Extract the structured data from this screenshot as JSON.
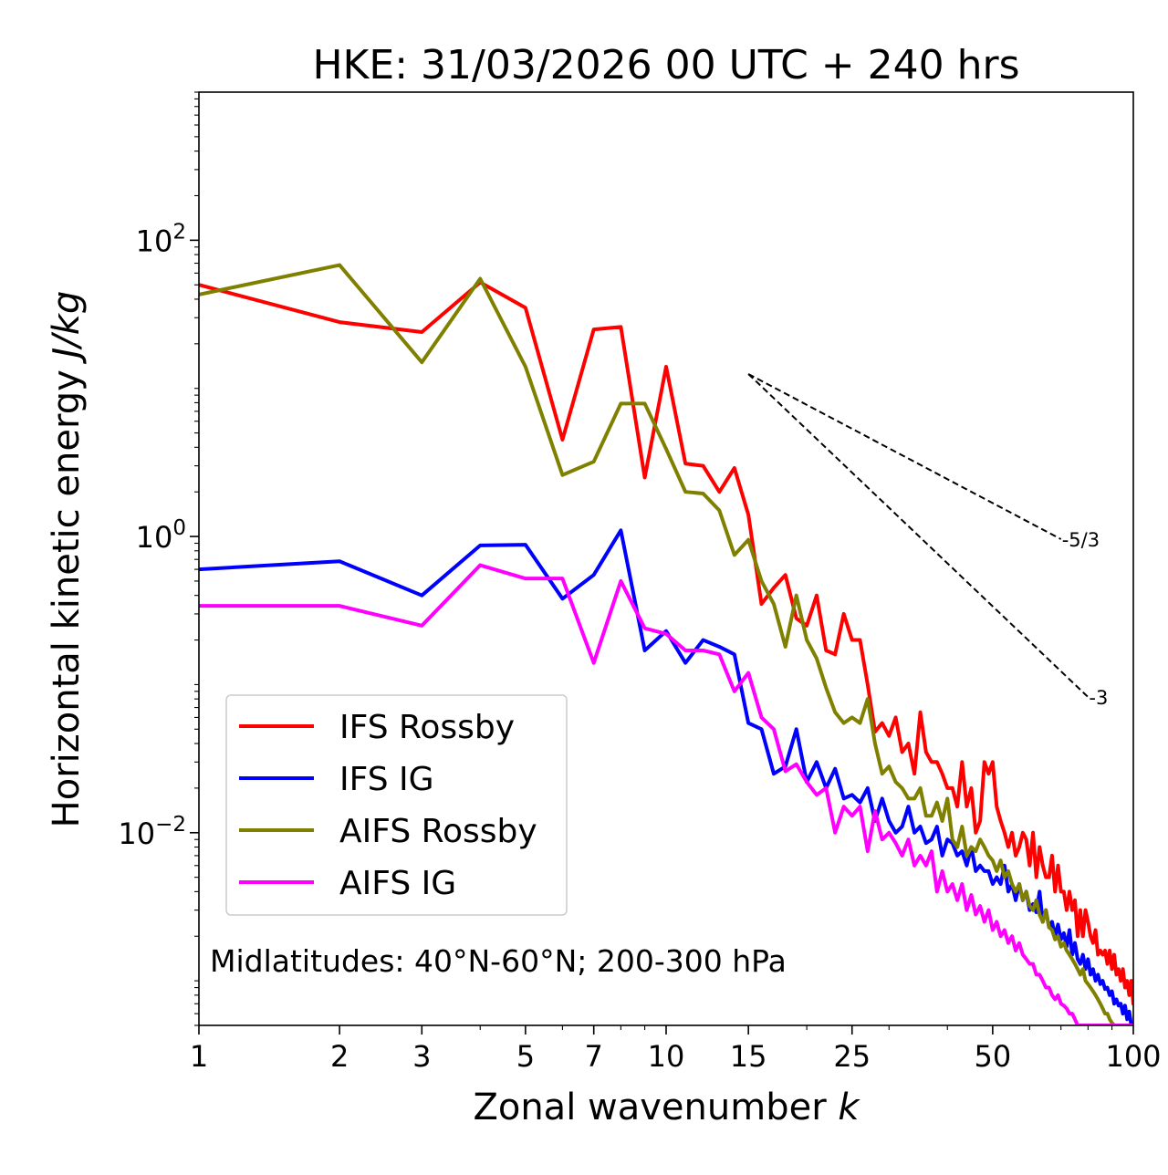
{
  "chart_data": {
    "type": "line",
    "title": "HKE: 31/03/2026 00 UTC + 240 hrs",
    "xlabel": "Zonal wavenumber",
    "xlabel_var": "k",
    "ylabel": "Horizontal kinetic energy",
    "ylabel_unit": "J/kg",
    "xscale": "log",
    "yscale": "log",
    "xlim": [
      1,
      100
    ],
    "ylim": [
      0.0005,
      1000
    ],
    "x_ticks": [
      1,
      2,
      3,
      5,
      7,
      10,
      15,
      25,
      50,
      100
    ],
    "y_ticks": [
      {
        "value": 100,
        "base": "10",
        "exp": "2"
      },
      {
        "value": 1,
        "base": "10",
        "exp": "0"
      },
      {
        "value": 0.01,
        "base": "10",
        "exp": "−2"
      }
    ],
    "annotation": "Midlatitudes: 40°N-60°N; 200-300 hPa",
    "legend_position": "lower-left",
    "reference_lines": [
      {
        "label": "-5/3",
        "slope": -1.6667,
        "k0": 15,
        "e0": 12.5,
        "k1": 70
      },
      {
        "label": "-3",
        "slope": -3,
        "k0": 15,
        "e0": 12.5,
        "k1": 80
      }
    ],
    "series": [
      {
        "name": "IFS Rossby",
        "color": "#ff0000",
        "x": [
          1,
          2,
          3,
          4,
          5,
          6,
          7,
          8,
          9,
          10,
          11,
          12,
          13,
          14,
          15,
          16,
          17,
          18,
          19,
          20,
          21,
          22,
          23,
          24,
          25,
          26,
          27,
          28,
          29,
          30,
          31,
          32,
          33,
          34,
          35,
          36,
          37,
          38,
          39,
          40,
          41,
          42,
          43,
          44,
          45,
          46,
          47,
          48,
          49,
          50,
          51,
          52,
          53,
          54,
          55,
          56,
          57,
          58,
          59,
          60,
          61,
          62,
          63,
          64,
          65,
          66,
          67,
          68,
          69,
          70,
          71,
          72,
          73,
          74,
          75,
          76,
          77,
          78,
          79,
          80,
          81,
          82,
          83,
          84,
          85,
          86,
          87,
          88,
          89,
          90,
          91,
          92,
          93,
          94,
          95,
          96,
          97,
          98,
          99,
          100
        ],
        "y": [
          50,
          28,
          24,
          52,
          35,
          4.5,
          25,
          26,
          2.5,
          14,
          3.1,
          3.0,
          2.0,
          2.9,
          1.4,
          0.35,
          0.45,
          0.55,
          0.28,
          0.25,
          0.4,
          0.17,
          0.16,
          0.3,
          0.2,
          0.2,
          0.1,
          0.048,
          0.055,
          0.045,
          0.06,
          0.035,
          0.04,
          0.025,
          0.065,
          0.035,
          0.03,
          0.03,
          0.025,
          0.02,
          0.02,
          0.015,
          0.03,
          0.015,
          0.02,
          0.01,
          0.012,
          0.03,
          0.025,
          0.03,
          0.015,
          0.012,
          0.01,
          0.008,
          0.01,
          0.007,
          0.008,
          0.01,
          0.009,
          0.006,
          0.01,
          0.005,
          0.008,
          0.006,
          0.005,
          0.005,
          0.007,
          0.004,
          0.006,
          0.004,
          0.004,
          0.003,
          0.004,
          0.003,
          0.0035,
          0.002,
          0.003,
          0.002,
          0.003,
          0.0025,
          0.002,
          0.0018,
          0.0022,
          0.0015,
          0.0016,
          0.0015,
          0.0016,
          0.0013,
          0.0016,
          0.0012,
          0.0015,
          0.0011,
          0.0012,
          0.001,
          0.0012,
          0.0009,
          0.001,
          0.0008,
          0.001,
          0.0007
        ]
      },
      {
        "name": "IFS IG",
        "color": "#0000ff",
        "x": [
          1,
          2,
          3,
          4,
          5,
          6,
          7,
          8,
          9,
          10,
          11,
          12,
          13,
          14,
          15,
          16,
          17,
          18,
          19,
          20,
          21,
          22,
          23,
          24,
          25,
          26,
          27,
          28,
          29,
          30,
          31,
          32,
          33,
          34,
          35,
          36,
          37,
          38,
          39,
          40,
          41,
          42,
          43,
          44,
          45,
          46,
          47,
          48,
          49,
          50,
          51,
          52,
          53,
          54,
          55,
          56,
          57,
          58,
          59,
          60,
          61,
          62,
          63,
          64,
          65,
          66,
          67,
          68,
          69,
          70,
          71,
          72,
          73,
          74,
          75,
          76,
          77,
          78,
          79,
          80,
          81,
          82,
          83,
          84,
          85,
          86,
          87,
          88,
          89,
          90,
          91,
          92,
          93,
          94,
          95,
          96,
          97,
          98,
          99,
          100
        ],
        "y": [
          0.6,
          0.68,
          0.4,
          0.87,
          0.88,
          0.38,
          0.55,
          1.1,
          0.17,
          0.23,
          0.14,
          0.2,
          0.18,
          0.16,
          0.055,
          0.05,
          0.025,
          0.028,
          0.05,
          0.022,
          0.03,
          0.02,
          0.027,
          0.017,
          0.018,
          0.016,
          0.02,
          0.012,
          0.017,
          0.012,
          0.01,
          0.011,
          0.015,
          0.01,
          0.011,
          0.0085,
          0.009,
          0.011,
          0.007,
          0.009,
          0.0085,
          0.007,
          0.0075,
          0.006,
          0.008,
          0.0055,
          0.006,
          0.0055,
          0.0055,
          0.0045,
          0.005,
          0.0045,
          0.006,
          0.004,
          0.0045,
          0.0035,
          0.0045,
          0.0035,
          0.004,
          0.003,
          0.0033,
          0.0029,
          0.004,
          0.0025,
          0.003,
          0.0023,
          0.0025,
          0.002,
          0.0024,
          0.0019,
          0.0021,
          0.0017,
          0.0022,
          0.0015,
          0.0018,
          0.0014,
          0.0013,
          0.0015,
          0.0012,
          0.0014,
          0.0011,
          0.0012,
          0.001,
          0.0011,
          0.00095,
          0.001,
          0.00088,
          0.0009,
          0.0008,
          0.00085,
          0.0007,
          0.00075,
          0.00068,
          0.0007,
          0.0006,
          0.00068,
          0.00055,
          0.00062,
          0.0005,
          0.0005
        ]
      },
      {
        "name": "AIFS Rossby",
        "color": "#808000",
        "x": [
          1,
          2,
          3,
          4,
          5,
          6,
          7,
          8,
          9,
          10,
          11,
          12,
          13,
          14,
          15,
          16,
          17,
          18,
          19,
          20,
          21,
          22,
          23,
          24,
          25,
          26,
          27,
          28,
          29,
          30,
          31,
          32,
          33,
          34,
          35,
          36,
          37,
          38,
          39,
          40,
          41,
          42,
          43,
          44,
          45,
          46,
          47,
          48,
          49,
          50,
          51,
          52,
          53,
          54,
          55,
          56,
          57,
          58,
          59,
          60,
          61,
          62,
          63,
          64,
          65,
          66,
          67,
          68,
          69,
          70,
          71,
          72,
          73,
          74,
          75,
          76,
          77,
          78,
          79,
          80,
          81,
          82,
          83,
          84,
          85,
          86,
          87,
          88,
          89,
          90,
          91,
          92,
          93,
          94,
          95,
          96,
          97,
          98,
          99,
          100
        ],
        "y": [
          43,
          68,
          15,
          55,
          14,
          2.6,
          3.2,
          7.9,
          7.9,
          3.9,
          2.0,
          1.95,
          1.5,
          0.75,
          0.95,
          0.5,
          0.35,
          0.18,
          0.4,
          0.2,
          0.15,
          0.095,
          0.065,
          0.055,
          0.06,
          0.055,
          0.08,
          0.04,
          0.025,
          0.028,
          0.022,
          0.02,
          0.017,
          0.017,
          0.02,
          0.013,
          0.013,
          0.016,
          0.012,
          0.017,
          0.009,
          0.008,
          0.011,
          0.007,
          0.008,
          0.0075,
          0.009,
          0.008,
          0.007,
          0.0065,
          0.0055,
          0.0065,
          0.005,
          0.0055,
          0.0045,
          0.004,
          0.0045,
          0.0035,
          0.004,
          0.0032,
          0.003,
          0.0035,
          0.0028,
          0.0025,
          0.003,
          0.0023,
          0.0022,
          0.0019,
          0.002,
          0.0017,
          0.0018,
          0.0016,
          0.0015,
          0.0014,
          0.0013,
          0.0012,
          0.0011,
          0.0012,
          0.001,
          0.00095,
          0.0009,
          0.00085,
          0.0008,
          0.00075,
          0.0007,
          0.00065,
          0.0006,
          0.0006,
          0.00055,
          0.00052,
          0.0005,
          0.0005,
          0.0005,
          0.0005,
          0.0005,
          0.0005,
          0.0005,
          0.0005,
          0.0005,
          0.0005
        ]
      },
      {
        "name": "AIFS IG",
        "color": "#ff00ff",
        "x": [
          1,
          2,
          3,
          4,
          5,
          6,
          7,
          8,
          9,
          10,
          11,
          12,
          13,
          14,
          15,
          16,
          17,
          18,
          19,
          20,
          21,
          22,
          23,
          24,
          25,
          26,
          27,
          28,
          29,
          30,
          31,
          32,
          33,
          34,
          35,
          36,
          37,
          38,
          39,
          40,
          41,
          42,
          43,
          44,
          45,
          46,
          47,
          48,
          49,
          50,
          51,
          52,
          53,
          54,
          55,
          56,
          57,
          58,
          59,
          60,
          61,
          62,
          63,
          64,
          65,
          66,
          67,
          68,
          69,
          70,
          71,
          72,
          73,
          74,
          75,
          76,
          77,
          78,
          79,
          80,
          81,
          82,
          83,
          84,
          85,
          86,
          87,
          88,
          89,
          90,
          91,
          92,
          93,
          94,
          95,
          96,
          97,
          98,
          99,
          100
        ],
        "y": [
          0.34,
          0.34,
          0.25,
          0.64,
          0.52,
          0.52,
          0.14,
          0.5,
          0.24,
          0.22,
          0.17,
          0.17,
          0.16,
          0.09,
          0.12,
          0.06,
          0.05,
          0.026,
          0.029,
          0.022,
          0.018,
          0.02,
          0.01,
          0.015,
          0.013,
          0.015,
          0.0075,
          0.014,
          0.009,
          0.01,
          0.0085,
          0.007,
          0.009,
          0.006,
          0.007,
          0.006,
          0.0075,
          0.004,
          0.0055,
          0.004,
          0.0045,
          0.0035,
          0.0045,
          0.003,
          0.0038,
          0.0028,
          0.0032,
          0.0025,
          0.003,
          0.0022,
          0.0025,
          0.002,
          0.0022,
          0.0018,
          0.002,
          0.0016,
          0.0018,
          0.0015,
          0.0014,
          0.0013,
          0.0013,
          0.0011,
          0.0011,
          0.001,
          0.0009,
          0.0009,
          0.0008,
          0.00075,
          0.0008,
          0.0007,
          0.00068,
          0.00065,
          0.0006,
          0.0006,
          0.00055,
          0.0005,
          0.0005,
          0.0005,
          0.0005,
          0.0005,
          0.0005,
          0.0005,
          0.0005,
          0.0005,
          0.0005,
          0.0005,
          0.0005,
          0.0005,
          0.0005,
          0.0005,
          0.0005,
          0.0005,
          0.0005,
          0.0005,
          0.0005,
          0.0005,
          0.0005,
          0.0005,
          0.0005,
          0.0005
        ]
      }
    ]
  }
}
